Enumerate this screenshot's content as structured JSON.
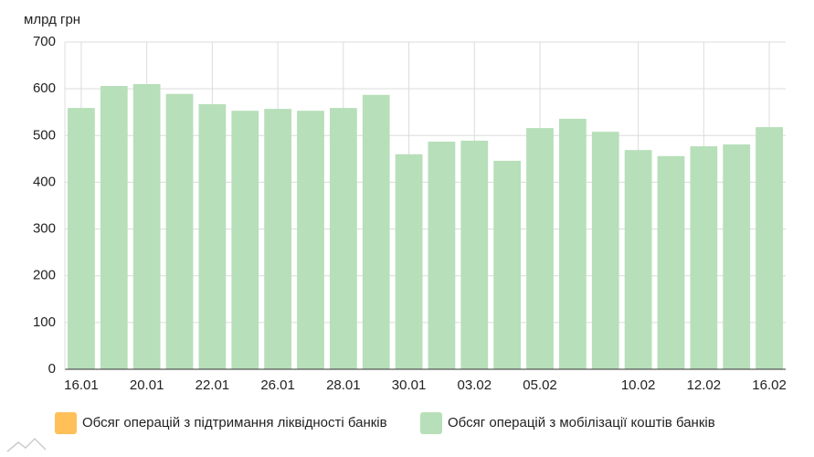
{
  "chart_data": {
    "type": "bar",
    "y_label": "млрд грн",
    "categories": [
      "16.01",
      null,
      "20.01",
      null,
      "22.01",
      null,
      "26.01",
      null,
      "28.01",
      null,
      "30.01",
      null,
      "03.02",
      null,
      "05.02",
      null,
      null,
      "10.02",
      null,
      "12.02",
      null,
      "16.02"
    ],
    "series": [
      {
        "name": "Обсяг операцій з підтримання ліквідності банків",
        "color": "#ffc05a",
        "values": [
          null,
          null,
          null,
          null,
          null,
          null,
          null,
          null,
          null,
          null,
          null,
          null,
          null,
          null,
          null,
          null,
          null,
          null,
          null,
          null,
          null,
          null
        ]
      },
      {
        "name": "Обсяг операцій з мобілізації коштів банків",
        "color": "#b7dfb9",
        "values": [
          559,
          606,
          610,
          589,
          567,
          553,
          557,
          553,
          559,
          587,
          460,
          487,
          489,
          446,
          516,
          536,
          508,
          469,
          456,
          477,
          481,
          518
        ]
      }
    ],
    "ylim": [
      0,
      700
    ],
    "yticks": [
      0,
      100,
      200,
      300,
      400,
      500,
      600,
      700
    ],
    "grid": true
  }
}
